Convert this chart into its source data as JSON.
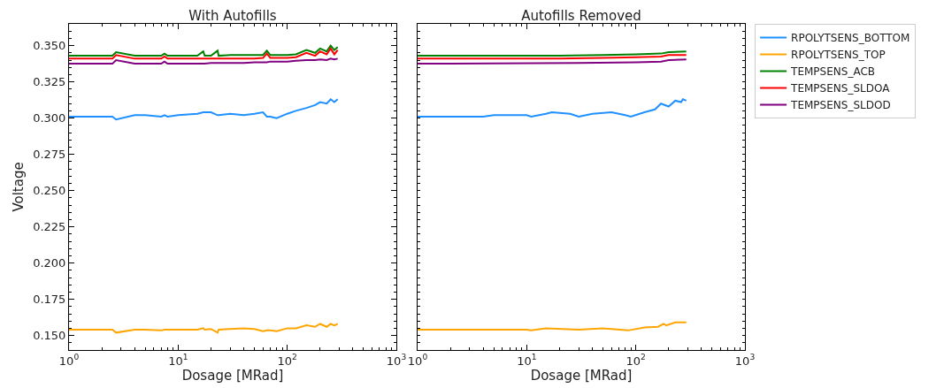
{
  "chart_data": [
    {
      "type": "line",
      "title": "With Autofills",
      "xlabel": "Dosage [MRad]",
      "ylabel": "Voltage",
      "log": "x",
      "grid": false,
      "x": [
        1,
        2.5,
        2.7,
        4,
        5,
        7,
        7.5,
        8,
        10,
        15,
        17,
        17.5,
        20,
        23,
        23.5,
        30,
        40,
        50,
        60,
        65,
        70,
        80,
        100,
        120,
        150,
        180,
        200,
        230,
        250,
        270,
        290
      ],
      "xlim": [
        1,
        1000
      ],
      "xticks": [
        {
          "value": 1,
          "label": "10$^{0}$"
        },
        {
          "value": 10,
          "label": "10$^{1}$"
        },
        {
          "value": 100,
          "label": "10$^{2}$"
        },
        {
          "value": 1000,
          "label": "10$^{3}$"
        }
      ],
      "ylim": [
        0.14,
        0.365
      ],
      "yticks": [
        {
          "value": 0.15,
          "label": "0.150"
        },
        {
          "value": 0.175,
          "label": "0.175"
        },
        {
          "value": 0.2,
          "label": "0.200"
        },
        {
          "value": 0.225,
          "label": "0.225"
        },
        {
          "value": 0.25,
          "label": "0.250"
        },
        {
          "value": 0.275,
          "label": "0.275"
        },
        {
          "value": 0.3,
          "label": "0.300"
        },
        {
          "value": 0.325,
          "label": "0.325"
        },
        {
          "value": 0.35,
          "label": "0.350"
        }
      ],
      "series": [
        {
          "color": "#1e90ff",
          "values": [
            0.301,
            0.301,
            0.299,
            0.302,
            0.302,
            0.301,
            0.302,
            0.301,
            0.302,
            0.303,
            0.304,
            0.304,
            0.304,
            0.302,
            0.302,
            0.303,
            0.302,
            0.303,
            0.304,
            0.301,
            0.301,
            0.3,
            0.303,
            0.305,
            0.307,
            0.309,
            0.311,
            0.31,
            0.313,
            0.311,
            0.313
          ]
        },
        {
          "color": "#ffa500",
          "values": [
            0.154,
            0.154,
            0.152,
            0.154,
            0.154,
            0.1535,
            0.154,
            0.154,
            0.154,
            0.154,
            0.155,
            0.154,
            0.1545,
            0.152,
            0.154,
            0.1545,
            0.155,
            0.1545,
            0.153,
            0.1535,
            0.1535,
            0.153,
            0.155,
            0.155,
            0.157,
            0.156,
            0.158,
            0.156,
            0.158,
            0.157,
            0.158
          ]
        },
        {
          "color": "#008000",
          "values": [
            0.343,
            0.343,
            0.3455,
            0.343,
            0.343,
            0.343,
            0.3445,
            0.343,
            0.343,
            0.343,
            0.346,
            0.343,
            0.343,
            0.3465,
            0.343,
            0.3435,
            0.3435,
            0.3435,
            0.3435,
            0.3465,
            0.3435,
            0.3435,
            0.3435,
            0.344,
            0.347,
            0.345,
            0.348,
            0.346,
            0.35,
            0.347,
            0.349
          ]
        },
        {
          "color": "#ff0000",
          "values": [
            0.341,
            0.341,
            0.3435,
            0.341,
            0.341,
            0.341,
            0.3425,
            0.341,
            0.341,
            0.341,
            0.341,
            0.341,
            0.341,
            0.341,
            0.341,
            0.341,
            0.341,
            0.341,
            0.3415,
            0.3445,
            0.3415,
            0.3415,
            0.3415,
            0.342,
            0.345,
            0.343,
            0.346,
            0.344,
            0.348,
            0.344,
            0.347
          ]
        },
        {
          "color": "#800080",
          "values": [
            0.3375,
            0.3375,
            0.34,
            0.3375,
            0.3375,
            0.3375,
            0.339,
            0.3375,
            0.3375,
            0.3375,
            0.3375,
            0.3375,
            0.338,
            0.338,
            0.338,
            0.338,
            0.338,
            0.3385,
            0.3385,
            0.3385,
            0.339,
            0.339,
            0.339,
            0.3395,
            0.34,
            0.34,
            0.3405,
            0.34,
            0.341,
            0.3405,
            0.341
          ]
        }
      ]
    },
    {
      "type": "line",
      "title": "Autofills Removed",
      "xlabel": "Dosage [MRad]",
      "log": "x",
      "grid": false,
      "legend": "top right",
      "tick_labels": "x",
      "xlim": [
        1,
        1000
      ],
      "xticks": [
        {
          "value": 1,
          "label": "10$^{0}$"
        },
        {
          "value": 10,
          "label": "10$^{1}$"
        },
        {
          "value": 100,
          "label": "10$^{2}$"
        },
        {
          "value": 1000,
          "label": "10$^{3}$"
        }
      ],
      "ylim": [
        0.14,
        0.365
      ],
      "yticks": [
        {
          "value": 0.15,
          "label": null
        },
        {
          "value": 0.175,
          "label": null
        },
        {
          "value": 0.2,
          "label": null
        },
        {
          "value": 0.225,
          "label": null
        },
        {
          "value": 0.25,
          "label": null
        },
        {
          "value": 0.275,
          "label": null
        },
        {
          "value": 0.3,
          "label": null
        },
        {
          "value": 0.325,
          "label": null
        },
        {
          "value": 0.35,
          "label": null
        }
      ],
      "series": [
        {
          "name": "RPOLYTSENS_BOTTOM",
          "color": "#1e90ff",
          "x": [
            1,
            4,
            5,
            10,
            11,
            15,
            17,
            25,
            30,
            40,
            60,
            80,
            90,
            120,
            150,
            170,
            200,
            230,
            260,
            270,
            290
          ],
          "values": [
            0.301,
            0.301,
            0.302,
            0.302,
            0.301,
            0.303,
            0.304,
            0.303,
            0.301,
            0.303,
            0.304,
            0.302,
            0.301,
            0.304,
            0.306,
            0.31,
            0.308,
            0.312,
            0.311,
            0.313,
            0.312
          ]
        },
        {
          "name": "RPOLYTSENS_TOP",
          "color": "#ffa500",
          "x": [
            1,
            10,
            11,
            15,
            30,
            50,
            85,
            120,
            160,
            180,
            190,
            230,
            290
          ],
          "values": [
            0.154,
            0.154,
            0.1535,
            0.155,
            0.154,
            0.155,
            0.1535,
            0.1555,
            0.156,
            0.158,
            0.157,
            0.159,
            0.159
          ]
        },
        {
          "name": "TEMPSENS_ACB",
          "color": "#008000",
          "x": [
            1,
            20,
            50,
            100,
            170,
            200,
            290
          ],
          "values": [
            0.343,
            0.343,
            0.3435,
            0.344,
            0.3445,
            0.3455,
            0.346
          ]
        },
        {
          "name": "TEMPSENS_SLDOA",
          "color": "#ff0000",
          "x": [
            1,
            20,
            50,
            100,
            170,
            200,
            290
          ],
          "values": [
            0.341,
            0.341,
            0.3415,
            0.342,
            0.3425,
            0.3435,
            0.3435
          ]
        },
        {
          "name": "TEMPSENS_SLDOD",
          "color": "#800080",
          "x": [
            1,
            30,
            100,
            170,
            200,
            290
          ],
          "values": [
            0.3375,
            0.338,
            0.3385,
            0.339,
            0.34,
            0.3405
          ]
        }
      ]
    }
  ]
}
